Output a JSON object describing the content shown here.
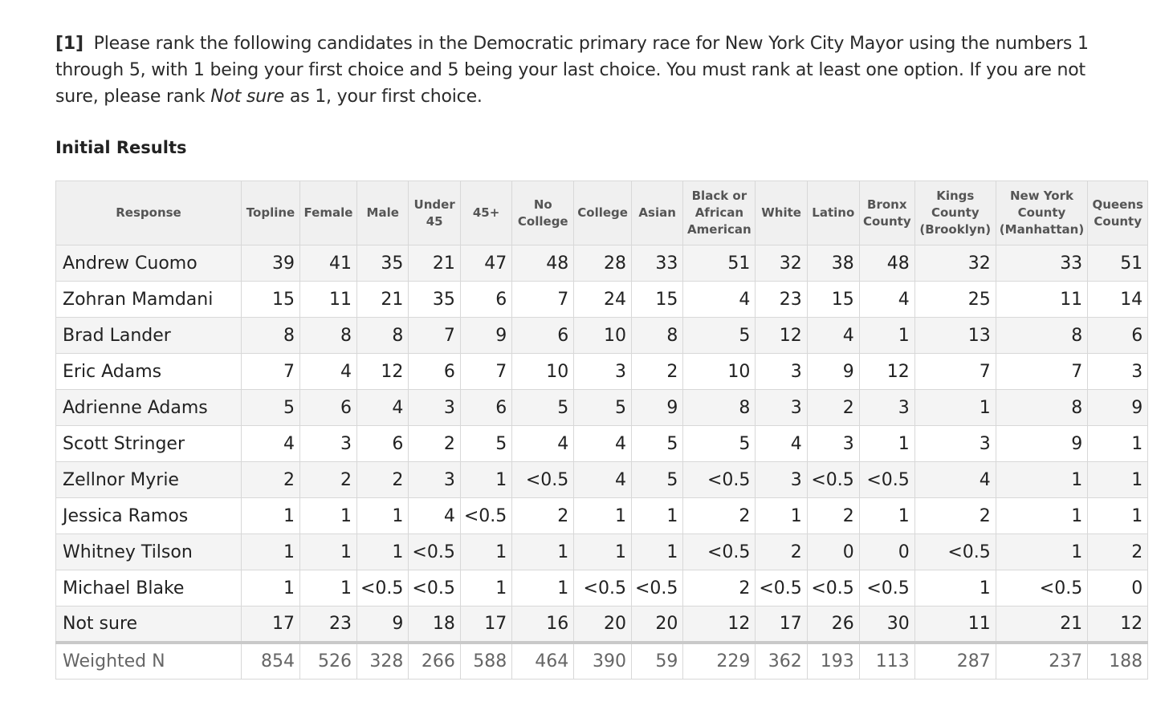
{
  "question": {
    "number": "[1]",
    "text_before": "Please rank the following candidates in the Democratic primary race for New York City Mayor using the numbers 1 through 5, with 1 being your first choice and 5 being your last choice. You must rank at least one option. If you are not sure, please rank",
    "emphasis": "Not sure",
    "text_after": "as 1, your first choice."
  },
  "section_title": "Initial Results",
  "table": {
    "headers": [
      {
        "lines": [
          "Response"
        ]
      },
      {
        "lines": [
          "Topline"
        ]
      },
      {
        "lines": [
          "Female"
        ]
      },
      {
        "lines": [
          "Male"
        ]
      },
      {
        "lines": [
          "Under",
          "45"
        ]
      },
      {
        "lines": [
          "45+"
        ]
      },
      {
        "lines": [
          "No",
          "College"
        ]
      },
      {
        "lines": [
          "College"
        ]
      },
      {
        "lines": [
          "Asian"
        ]
      },
      {
        "lines": [
          "Black or",
          "African",
          "American"
        ]
      },
      {
        "lines": [
          "White"
        ]
      },
      {
        "lines": [
          "Latino"
        ]
      },
      {
        "lines": [
          "Bronx",
          "County"
        ]
      },
      {
        "lines": [
          "Kings",
          "County",
          "(Brooklyn)"
        ]
      },
      {
        "lines": [
          "New York",
          "County",
          "(Manhattan)"
        ]
      },
      {
        "lines": [
          "Queens",
          "County"
        ]
      }
    ],
    "rows": [
      [
        "Andrew Cuomo",
        "39",
        "41",
        "35",
        "21",
        "47",
        "48",
        "28",
        "33",
        "51",
        "32",
        "38",
        "48",
        "32",
        "33",
        "51"
      ],
      [
        "Zohran Mamdani",
        "15",
        "11",
        "21",
        "35",
        "6",
        "7",
        "24",
        "15",
        "4",
        "23",
        "15",
        "4",
        "25",
        "11",
        "14"
      ],
      [
        "Brad Lander",
        "8",
        "8",
        "8",
        "7",
        "9",
        "6",
        "10",
        "8",
        "5",
        "12",
        "4",
        "1",
        "13",
        "8",
        "6"
      ],
      [
        "Eric Adams",
        "7",
        "4",
        "12",
        "6",
        "7",
        "10",
        "3",
        "2",
        "10",
        "3",
        "9",
        "12",
        "7",
        "7",
        "3"
      ],
      [
        "Adrienne Adams",
        "5",
        "6",
        "4",
        "3",
        "6",
        "5",
        "5",
        "9",
        "8",
        "3",
        "2",
        "3",
        "1",
        "8",
        "9"
      ],
      [
        "Scott Stringer",
        "4",
        "3",
        "6",
        "2",
        "5",
        "4",
        "4",
        "5",
        "5",
        "4",
        "3",
        "1",
        "3",
        "9",
        "1"
      ],
      [
        "Zellnor Myrie",
        "2",
        "2",
        "2",
        "3",
        "1",
        "<0.5",
        "4",
        "5",
        "<0.5",
        "3",
        "<0.5",
        "<0.5",
        "4",
        "1",
        "1"
      ],
      [
        "Jessica Ramos",
        "1",
        "1",
        "1",
        "4",
        "<0.5",
        "2",
        "1",
        "1",
        "2",
        "1",
        "2",
        "1",
        "2",
        "1",
        "1"
      ],
      [
        "Whitney Tilson",
        "1",
        "1",
        "1",
        "<0.5",
        "1",
        "1",
        "1",
        "1",
        "<0.5",
        "2",
        "0",
        "0",
        "<0.5",
        "1",
        "2"
      ],
      [
        "Michael Blake",
        "1",
        "1",
        "<0.5",
        "<0.5",
        "1",
        "1",
        "<0.5",
        "<0.5",
        "2",
        "<0.5",
        "<0.5",
        "<0.5",
        "1",
        "<0.5",
        "0"
      ],
      [
        "Not sure",
        "17",
        "23",
        "9",
        "18",
        "17",
        "16",
        "20",
        "20",
        "12",
        "17",
        "26",
        "30",
        "11",
        "21",
        "12"
      ]
    ],
    "footer": [
      "Weighted N",
      "854",
      "526",
      "328",
      "266",
      "588",
      "464",
      "390",
      "59",
      "229",
      "362",
      "193",
      "113",
      "287",
      "237",
      "188"
    ]
  }
}
